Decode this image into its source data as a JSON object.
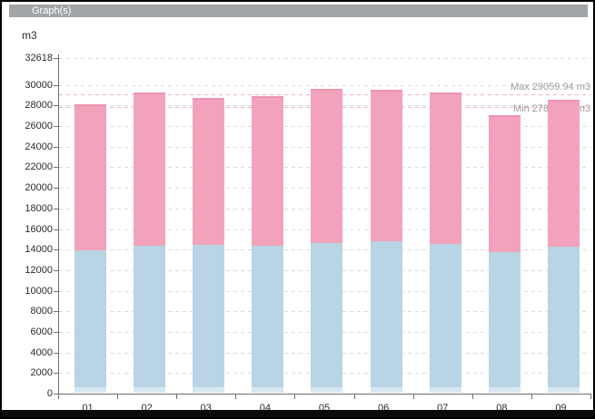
{
  "window": {
    "title": "Graph(s)"
  },
  "chart": {
    "unit_label": "m3"
  },
  "colors": {
    "bar_blue": "#B9D4E4",
    "bar_pink": "#F2A3BB",
    "pink_top_edge": "#EE94AF",
    "grid": "#DBDBDB",
    "annotation_line": "#F2B3C6",
    "annotation_text": "#9B9B9B",
    "axis": "#6E6E6E",
    "titlebar_bg": "#A1A5A7",
    "titlebar_text": "#FFFFFF"
  },
  "chart_data": {
    "type": "bar",
    "stacked": true,
    "title": "",
    "unit": "m3",
    "categories": [
      "01",
      "02",
      "03",
      "04",
      "05",
      "06",
      "07",
      "08",
      "09"
    ],
    "series": [
      {
        "name": "blue",
        "color": "#B9D4E4",
        "values": [
          13890,
          14330,
          14480,
          14330,
          14630,
          14780,
          14540,
          13740,
          14270
        ]
      },
      {
        "name": "pink",
        "color": "#F2A3BB",
        "values": [
          14210,
          14920,
          14270,
          14600,
          14970,
          14710,
          14770,
          13360,
          14300
        ]
      }
    ],
    "totals": [
      28100,
      29250,
      28750,
      28930,
      29600,
      29490,
      29310,
      27100,
      28570
    ],
    "ylim": [
      0,
      32618
    ],
    "yticks": [
      0,
      2000,
      4000,
      6000,
      8000,
      10000,
      12000,
      14000,
      16000,
      18000,
      20000,
      22000,
      24000,
      26000,
      28000,
      30000,
      32618
    ],
    "grid": true,
    "legend_position": "none",
    "annotations": [
      {
        "name": "max-line",
        "label": "Max 29059.94 m3",
        "value": 29059.94,
        "placement": "above"
      },
      {
        "name": "min-line",
        "label": "Min 27881.12 m3",
        "value": 27881.12,
        "placement": "below"
      }
    ]
  }
}
